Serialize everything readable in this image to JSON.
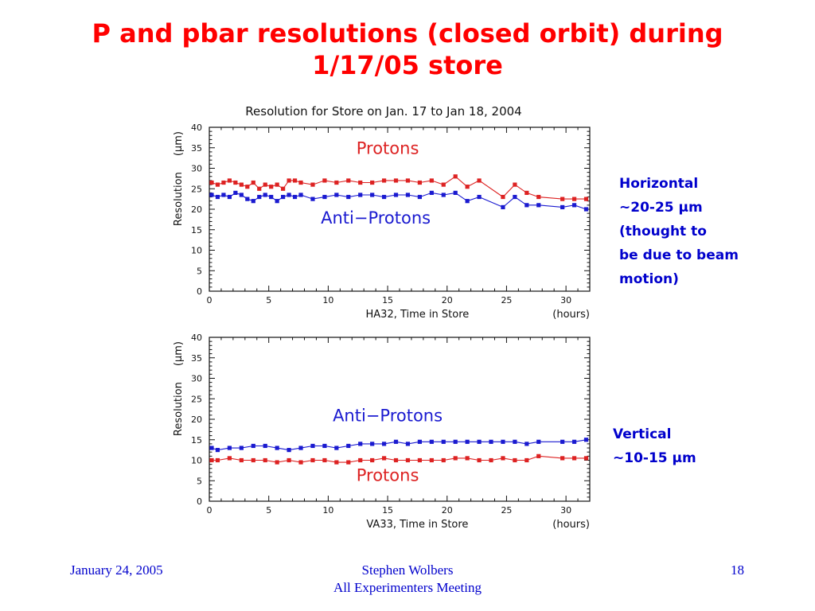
{
  "slide": {
    "title_lines": [
      "P and pbar resolutions (closed orbit) during",
      "1/17/05 store"
    ],
    "notes": {
      "horizontal": [
        "Horizontal",
        "~20-25 µm",
        "(thought to",
        "be due to beam",
        "motion)"
      ],
      "vertical": [
        "Vertical",
        "~10-15 µm"
      ]
    },
    "footer": {
      "date": "January 24, 2005",
      "author": "Stephen Wolbers",
      "meeting": "All Experimenters Meeting",
      "page": "18"
    }
  },
  "colors": {
    "protons": "#dd2222",
    "antiprotons": "#1a1ad0",
    "title": "#ff0000",
    "notes": "#0000cc"
  },
  "chart_data": [
    {
      "type": "line",
      "title": "Resolution for Store on Jan. 17 to Jan 18, 2004",
      "xlabel": "HA32,  Time in Store",
      "xunit": "(hours)",
      "ylabel": "Resolution",
      "yunit": "(µm)",
      "xlim": [
        0,
        32
      ],
      "ylim": [
        0,
        40
      ],
      "xticks": [
        0,
        5,
        10,
        15,
        20,
        25,
        30
      ],
      "yticks": [
        0,
        5,
        10,
        15,
        20,
        25,
        30,
        35,
        40
      ],
      "grid": false,
      "annotations": [
        {
          "text": "Protons",
          "series": "protons",
          "x": 15,
          "y": 33.5
        },
        {
          "text": "Anti−Protons",
          "series": "antiprotons",
          "x": 14,
          "y": 16.5
        }
      ],
      "series": [
        {
          "key": "protons",
          "x": [
            0.2,
            0.7,
            1.2,
            1.7,
            2.2,
            2.7,
            3.2,
            3.7,
            4.2,
            4.7,
            5.2,
            5.7,
            6.2,
            6.7,
            7.2,
            7.7,
            8.7,
            9.7,
            10.7,
            11.7,
            12.7,
            13.7,
            14.7,
            15.7,
            16.7,
            17.7,
            18.7,
            19.7,
            20.7,
            21.7,
            22.7,
            24.7,
            25.7,
            26.7,
            27.7,
            29.7,
            30.7,
            31.7
          ],
          "values": [
            26.5,
            26,
            26.5,
            27,
            26.5,
            26,
            25.5,
            26.5,
            25,
            26,
            25.5,
            26,
            25,
            27,
            27,
            26.5,
            26,
            27,
            26.5,
            27,
            26.5,
            26.5,
            27,
            27,
            27,
            26.5,
            27,
            26,
            28,
            25.5,
            27,
            23,
            26,
            24,
            23,
            22.5,
            22.5,
            22.5
          ]
        },
        {
          "key": "antiprotons",
          "x": [
            0.2,
            0.7,
            1.2,
            1.7,
            2.2,
            2.7,
            3.2,
            3.7,
            4.2,
            4.7,
            5.2,
            5.7,
            6.2,
            6.7,
            7.2,
            7.7,
            8.7,
            9.7,
            10.7,
            11.7,
            12.7,
            13.7,
            14.7,
            15.7,
            16.7,
            17.7,
            18.7,
            19.7,
            20.7,
            21.7,
            22.7,
            24.7,
            25.7,
            26.7,
            27.7,
            29.7,
            30.7,
            31.7
          ],
          "values": [
            23.5,
            23,
            23.5,
            23,
            24,
            23.5,
            22.5,
            22,
            23,
            23.5,
            23,
            22,
            23,
            23.5,
            23,
            23.5,
            22.5,
            23,
            23.5,
            23,
            23.5,
            23.5,
            23,
            23.5,
            23.5,
            23,
            24,
            23.5,
            24,
            22,
            23,
            20.5,
            23,
            21,
            21,
            20.5,
            21,
            20
          ]
        }
      ]
    },
    {
      "type": "line",
      "title": "",
      "xlabel": "VA33,  Time in Store",
      "xunit": "(hours)",
      "ylabel": "Resolution",
      "yunit": "(µm)",
      "xlim": [
        0,
        32
      ],
      "ylim": [
        0,
        40
      ],
      "xticks": [
        0,
        5,
        10,
        15,
        20,
        25,
        30
      ],
      "yticks": [
        0,
        5,
        10,
        15,
        20,
        25,
        30,
        35,
        40
      ],
      "grid": false,
      "annotations": [
        {
          "text": "Anti−Protons",
          "series": "antiprotons",
          "x": 15,
          "y": 19.5
        },
        {
          "text": "Protons",
          "series": "protons",
          "x": 15,
          "y": 5
        }
      ],
      "series": [
        {
          "key": "antiprotons",
          "x": [
            0.2,
            0.7,
            1.7,
            2.7,
            3.7,
            4.7,
            5.7,
            6.7,
            7.7,
            8.7,
            9.7,
            10.7,
            11.7,
            12.7,
            13.7,
            14.7,
            15.7,
            16.7,
            17.7,
            18.7,
            19.7,
            20.7,
            21.7,
            22.7,
            23.7,
            24.7,
            25.7,
            26.7,
            27.7,
            29.7,
            30.7,
            31.7
          ],
          "values": [
            13,
            12.5,
            13,
            13,
            13.5,
            13.5,
            13,
            12.5,
            13,
            13.5,
            13.5,
            13,
            13.5,
            14,
            14,
            14,
            14.5,
            14,
            14.5,
            14.5,
            14.5,
            14.5,
            14.5,
            14.5,
            14.5,
            14.5,
            14.5,
            14,
            14.5,
            14.5,
            14.5,
            15
          ]
        },
        {
          "key": "protons",
          "x": [
            0.2,
            0.7,
            1.7,
            2.7,
            3.7,
            4.7,
            5.7,
            6.7,
            7.7,
            8.7,
            9.7,
            10.7,
            11.7,
            12.7,
            13.7,
            14.7,
            15.7,
            16.7,
            17.7,
            18.7,
            19.7,
            20.7,
            21.7,
            22.7,
            23.7,
            24.7,
            25.7,
            26.7,
            27.7,
            29.7,
            30.7,
            31.7
          ],
          "values": [
            10,
            10,
            10.5,
            10,
            10,
            10,
            9.5,
            10,
            9.5,
            10,
            10,
            9.5,
            9.5,
            10,
            10,
            10.5,
            10,
            10,
            10,
            10,
            10,
            10.5,
            10.5,
            10,
            10,
            10.5,
            10,
            10,
            11,
            10.5,
            10.5,
            10.5
          ]
        }
      ]
    }
  ]
}
